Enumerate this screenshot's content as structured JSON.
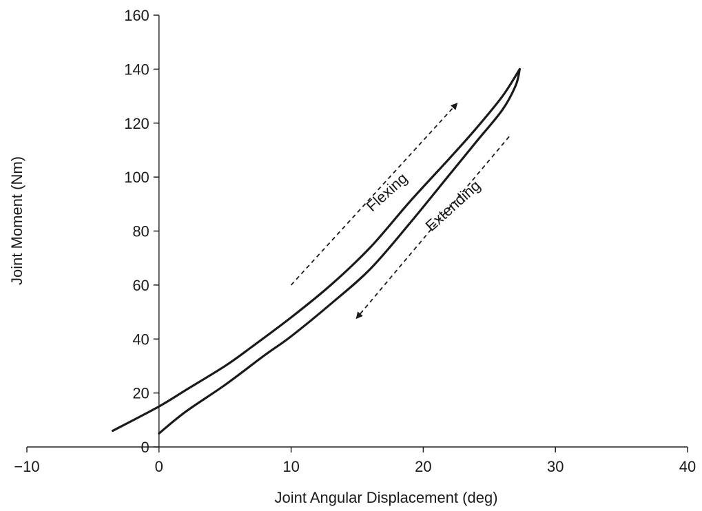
{
  "chart_data": {
    "type": "line",
    "title": "",
    "xlabel": "Joint Angular Displacement (deg)",
    "ylabel": "Joint Moment (Nm)",
    "xlim": [
      -10,
      40
    ],
    "ylim": [
      0,
      160
    ],
    "x_ticks": [
      -10,
      0,
      10,
      20,
      30,
      40
    ],
    "y_ticks": [
      0,
      20,
      40,
      60,
      80,
      100,
      120,
      140,
      160
    ],
    "x_tick_labels": [
      "−10",
      "0",
      "10",
      "20",
      "30",
      "40"
    ],
    "y_tick_labels": [
      "0",
      "20",
      "40",
      "60",
      "80",
      "100",
      "120",
      "140",
      "160"
    ],
    "grid": false,
    "legend": "none",
    "series": [
      {
        "x": [
          -3.5,
          0,
          2,
          5,
          7,
          10,
          13,
          16,
          19,
          22,
          24,
          26,
          27.3
        ],
        "y": [
          6,
          15,
          21,
          30,
          37,
          48,
          60,
          74,
          91,
          107,
          118,
          130,
          140
        ]
      },
      {
        "x": [
          0,
          2,
          5,
          8,
          10,
          13,
          16,
          19,
          22,
          24,
          26,
          27,
          27.3
        ],
        "y": [
          5,
          13,
          23,
          34,
          41,
          53,
          66,
          83,
          101,
          113,
          125,
          134,
          140
        ]
      }
    ],
    "annotations": [
      {
        "text": "Flexing",
        "x": 17.5,
        "y": 93,
        "angle_deg": -42,
        "arrow_from": [
          10,
          60
        ],
        "arrow_to": [
          22.5,
          127
        ]
      },
      {
        "text": "Extending",
        "x": 22.5,
        "y": 88,
        "angle_deg": -42,
        "arrow_from": [
          26.5,
          115
        ],
        "arrow_to": [
          15,
          48
        ]
      }
    ]
  }
}
